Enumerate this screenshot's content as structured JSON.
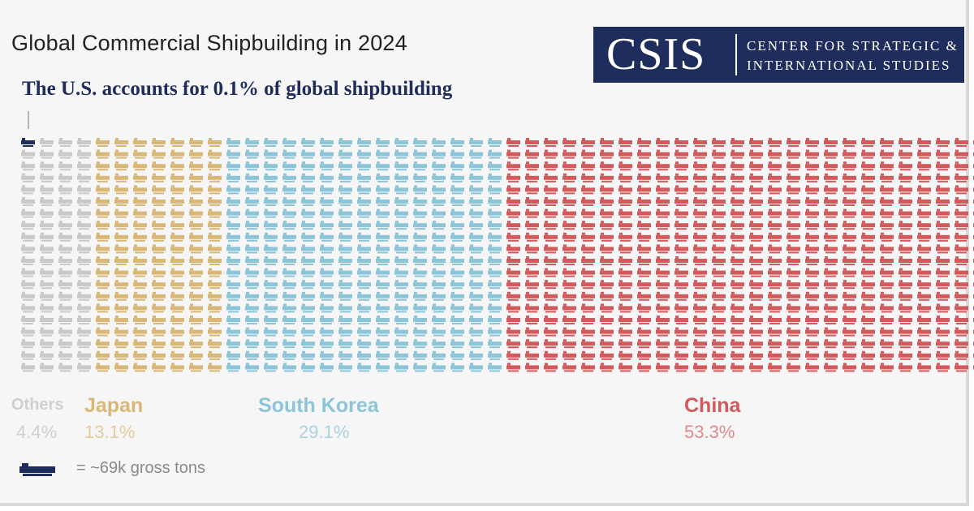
{
  "title": "Global Commercial Shipbuilding in 2024",
  "subtitle": "The U.S. accounts for  0.1% of global shipbuilding",
  "logo": {
    "mark": "CSIS",
    "line1": "CENTER FOR STRATEGIC &",
    "line2": "INTERNATIONAL STUDIES"
  },
  "legend_note": "= ~69k gross tons",
  "colors": {
    "us": "#1f2d5c",
    "others": "#c9c9c9",
    "japan": "#d9b877",
    "south_korea": "#8cc4d8",
    "china": "#d35a5c"
  },
  "chart_data": {
    "type": "waffle",
    "unit": "one ship icon = ~69k gross tons",
    "series": [
      {
        "name": "U.S.",
        "share_pct": 0.1,
        "color": "#1f2d5c"
      },
      {
        "name": "Others",
        "share_pct": 4.4,
        "label": "4.4%",
        "color": "#c9c9c9"
      },
      {
        "name": "Japan",
        "share_pct": 13.1,
        "label": "13.1%",
        "color": "#d9b877"
      },
      {
        "name": "South Korea",
        "share_pct": 29.1,
        "label": "29.1%",
        "color": "#8cc4d8"
      },
      {
        "name": "China",
        "share_pct": 53.3,
        "label": "53.3%",
        "color": "#d35a5c"
      }
    ],
    "icons_per_column": 20,
    "columns": [
      {
        "name": "U.S.",
        "count": 1
      },
      {
        "name": "Others",
        "count": 3
      },
      {
        "name": "Japan",
        "count": 7
      },
      {
        "name": "South Korea",
        "count": 15
      },
      {
        "name": "China",
        "count": 26
      }
    ]
  }
}
